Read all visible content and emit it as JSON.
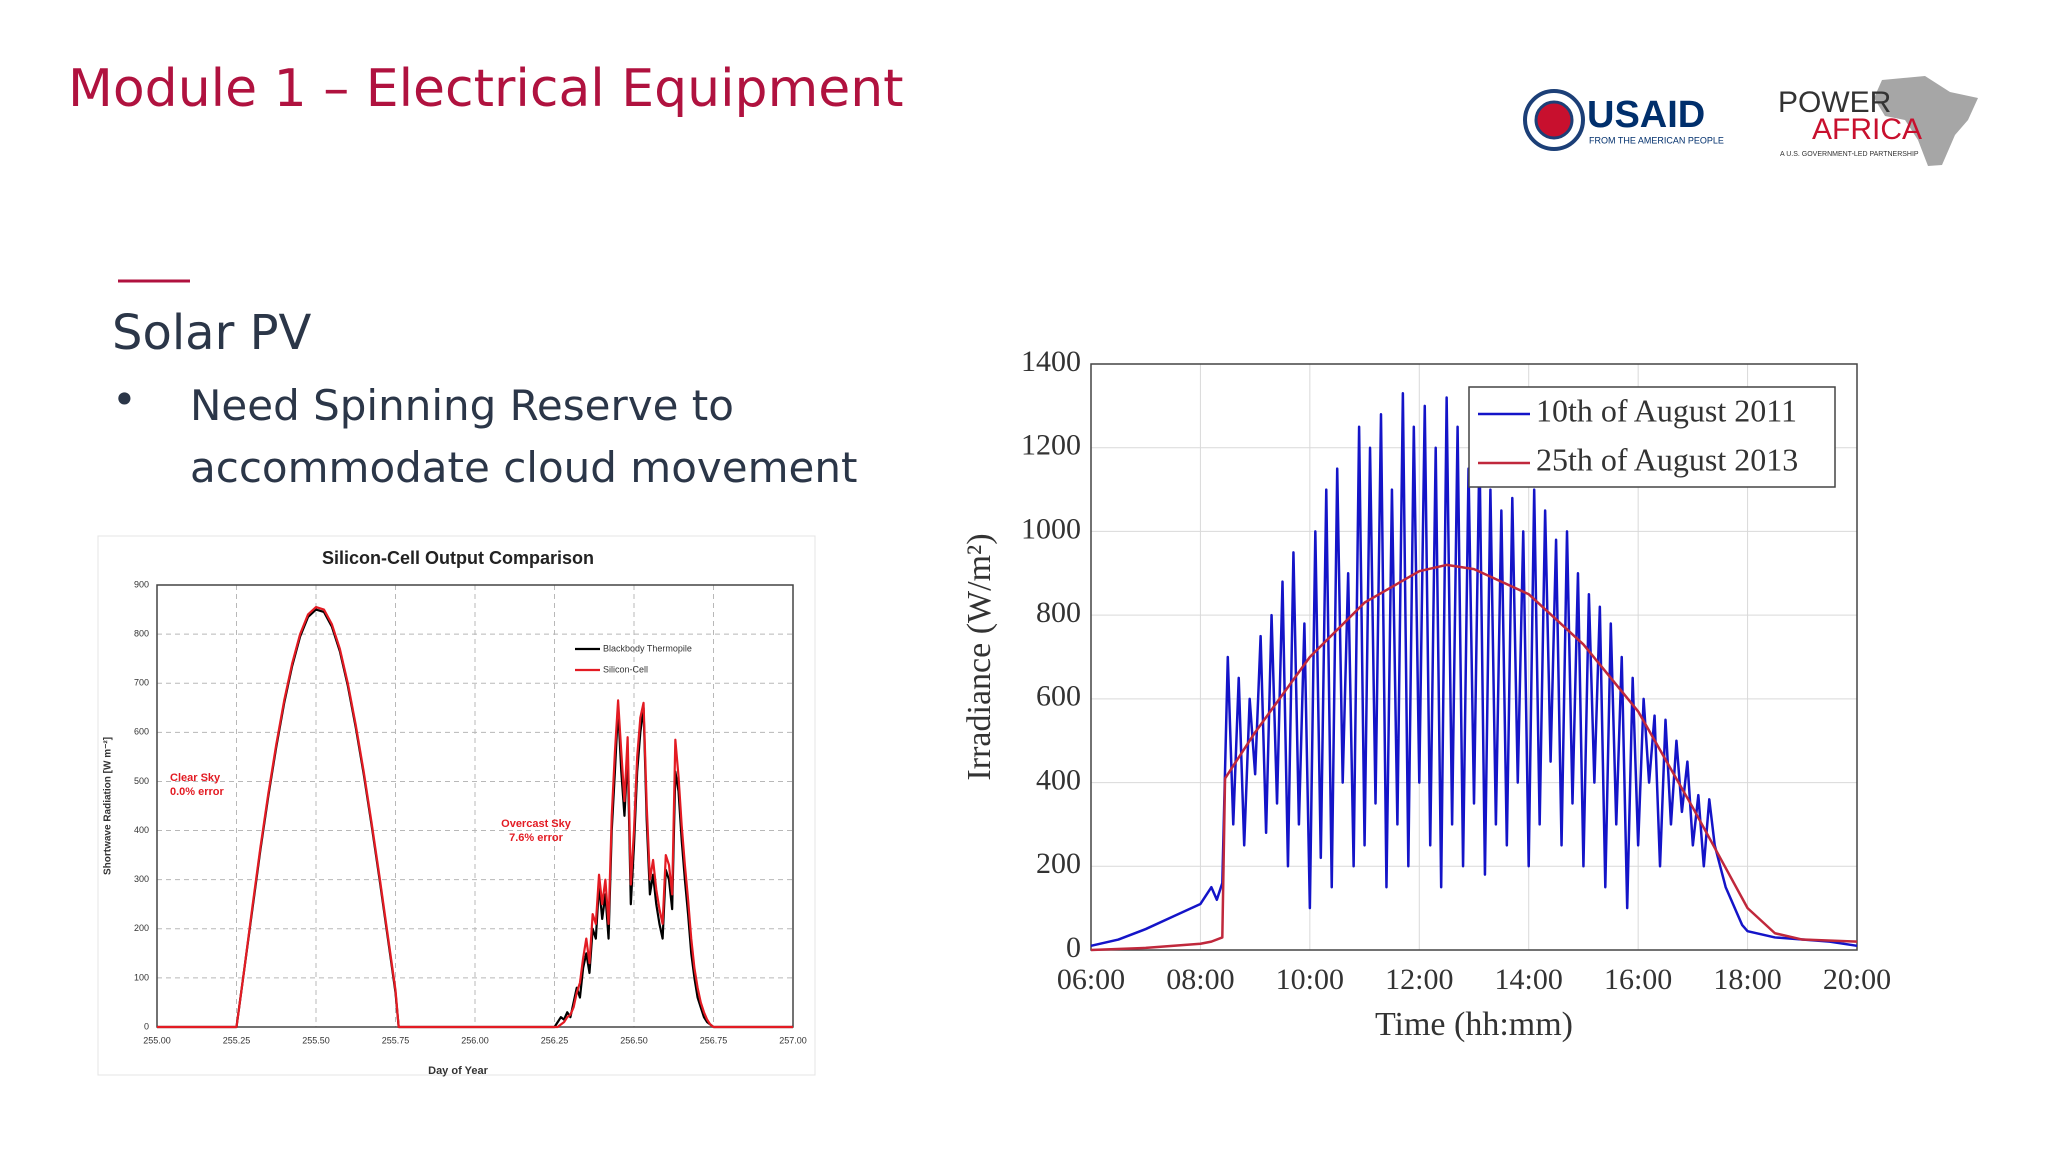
{
  "header": {
    "title": "Module 1 – Electrical Equipment"
  },
  "logos": {
    "usaid": "USAID",
    "usaid_tagline": "FROM THE AMERICAN PEOPLE",
    "power": "POWER",
    "africa": "AFRICA",
    "power_africa_tagline": "A U.S. GOVERNMENT-LED PARTNERSHIP"
  },
  "content": {
    "heading": "Solar PV",
    "bullets": [
      "Need Spinning Reserve to accommodate cloud movement"
    ]
  },
  "chart_data": [
    {
      "type": "line",
      "title": "Silicon-Cell Output Comparison",
      "x_label": "Day of Year",
      "y_label": "Shortwave Radiation [W m⁻²]",
      "x": [
        255.0,
        255.25,
        255.275,
        255.3,
        255.325,
        255.35,
        255.375,
        255.4,
        255.425,
        255.45,
        255.475,
        255.5,
        255.525,
        255.55,
        255.575,
        255.6,
        255.625,
        255.65,
        255.675,
        255.7,
        255.725,
        255.75,
        255.76,
        256.25,
        256.26,
        256.27,
        256.28,
        256.29,
        256.3,
        256.31,
        256.32,
        256.33,
        256.34,
        256.35,
        256.36,
        256.37,
        256.38,
        256.39,
        256.4,
        256.41,
        256.42,
        256.43,
        256.44,
        256.45,
        256.46,
        256.47,
        256.48,
        256.49,
        256.5,
        256.51,
        256.52,
        256.53,
        256.54,
        256.55,
        256.56,
        256.57,
        256.58,
        256.59,
        256.6,
        256.61,
        256.62,
        256.63,
        256.64,
        256.65,
        256.66,
        256.67,
        256.68,
        256.69,
        256.7,
        256.71,
        256.72,
        256.73,
        256.74,
        256.75,
        257.0
      ],
      "series": [
        {
          "name": "Blackbody Thermopile",
          "color": "#000000",
          "values": [
            0,
            0,
            120,
            240,
            360,
            470,
            570,
            660,
            735,
            795,
            835,
            850,
            845,
            815,
            765,
            695,
            610,
            515,
            410,
            300,
            185,
            70,
            0,
            0,
            10,
            20,
            15,
            30,
            20,
            50,
            80,
            60,
            120,
            150,
            110,
            200,
            180,
            290,
            220,
            270,
            180,
            400,
            520,
            650,
            520,
            430,
            560,
            250,
            370,
            520,
            600,
            650,
            420,
            270,
            310,
            250,
            210,
            180,
            320,
            300,
            240,
            520,
            480,
            380,
            300,
            230,
            150,
            100,
            60,
            40,
            20,
            10,
            5,
            0,
            0
          ]
        },
        {
          "name": "Silicon-Cell",
          "color": "#e31b23",
          "values": [
            0,
            0,
            120,
            245,
            365,
            475,
            575,
            665,
            740,
            800,
            840,
            855,
            850,
            820,
            770,
            700,
            615,
            520,
            415,
            305,
            190,
            75,
            0,
            0,
            0,
            5,
            10,
            20,
            25,
            40,
            70,
            90,
            140,
            180,
            130,
            230,
            210,
            310,
            250,
            300,
            210,
            430,
            560,
            665,
            560,
            460,
            590,
            290,
            400,
            550,
            630,
            660,
            450,
            300,
            340,
            280,
            240,
            210,
            350,
            330,
            270,
            585,
            510,
            410,
            330,
            260,
            180,
            120,
            80,
            50,
            30,
            15,
            5,
            0,
            0
          ]
        }
      ],
      "annotations": [
        [
          "Clear Sky",
          "0.0% error"
        ],
        [
          "Overcast Sky",
          "7.6% error"
        ]
      ],
      "xlim": [
        255,
        257
      ],
      "ylim": [
        0,
        900
      ],
      "xticks": [
        {
          "value": 255,
          "label": "255.00"
        },
        {
          "value": 255.25,
          "label": "255.25"
        },
        {
          "value": 255.5,
          "label": "255.50"
        },
        {
          "value": 255.75,
          "label": "255.75"
        },
        {
          "value": 256,
          "label": "256.00"
        },
        {
          "value": 256.25,
          "label": "256.25"
        },
        {
          "value": 256.5,
          "label": "256.50"
        },
        {
          "value": 256.75,
          "label": "256.75"
        },
        {
          "value": 257,
          "label": "257.00"
        }
      ],
      "yticks": [
        0,
        100,
        200,
        300,
        400,
        500,
        600,
        700,
        800,
        900
      ],
      "grid": true,
      "legend": "upper right"
    },
    {
      "type": "line",
      "x_label": "Time (hh:mm)",
      "y_label": "Irradiance (W/m²)",
      "series": [
        {
          "name": "10th of August 2011",
          "color": "#1414c8",
          "x": [
            6,
            6.5,
            7,
            7.5,
            8,
            8.2,
            8.3,
            8.4,
            8.5,
            8.6,
            8.7,
            8.8,
            8.9,
            9,
            9.1,
            9.2,
            9.3,
            9.4,
            9.5,
            9.6,
            9.7,
            9.8,
            9.9,
            10,
            10.1,
            10.2,
            10.3,
            10.4,
            10.5,
            10.6,
            10.7,
            10.8,
            10.9,
            11,
            11.1,
            11.2,
            11.3,
            11.4,
            11.5,
            11.6,
            11.7,
            11.8,
            11.9,
            12,
            12.1,
            12.2,
            12.3,
            12.4,
            12.5,
            12.6,
            12.7,
            12.8,
            12.9,
            13,
            13.1,
            13.2,
            13.3,
            13.4,
            13.5,
            13.6,
            13.7,
            13.8,
            13.9,
            14,
            14.1,
            14.2,
            14.3,
            14.4,
            14.5,
            14.6,
            14.7,
            14.8,
            14.9,
            15,
            15.1,
            15.2,
            15.3,
            15.4,
            15.5,
            15.6,
            15.7,
            15.8,
            15.9,
            16,
            16.1,
            16.2,
            16.3,
            16.4,
            16.5,
            16.6,
            16.7,
            16.8,
            16.9,
            17,
            17.1,
            17.2,
            17.3,
            17.4,
            17.5,
            17.6,
            17.7,
            17.8,
            17.9,
            18,
            18.5,
            19,
            19.5,
            20
          ],
          "values": [
            10,
            25,
            50,
            80,
            110,
            150,
            120,
            160,
            700,
            300,
            650,
            250,
            600,
            420,
            750,
            280,
            800,
            350,
            880,
            200,
            950,
            300,
            780,
            100,
            1000,
            220,
            1100,
            150,
            1150,
            400,
            900,
            200,
            1250,
            250,
            1200,
            350,
            1280,
            150,
            1100,
            300,
            1330,
            200,
            1250,
            400,
            1300,
            250,
            1200,
            150,
            1320,
            300,
            1250,
            200,
            1150,
            350,
            1200,
            180,
            1100,
            300,
            1050,
            250,
            1080,
            400,
            1000,
            200,
            1100,
            300,
            1050,
            450,
            980,
            250,
            1000,
            350,
            900,
            200,
            850,
            400,
            820,
            150,
            780,
            300,
            700,
            100,
            650,
            250,
            600,
            400,
            560,
            200,
            550,
            300,
            500,
            330,
            450,
            250,
            370,
            200,
            360,
            250,
            200,
            150,
            120,
            90,
            60,
            45,
            30,
            25,
            20,
            10
          ]
        },
        {
          "name": "25th of August 2013",
          "color": "#c0283c",
          "x": [
            6,
            7,
            8,
            8.2,
            8.4,
            8.45,
            9,
            10,
            11,
            12,
            12.5,
            13,
            14,
            15,
            16,
            17,
            18,
            18.5,
            19,
            20
          ],
          "values": [
            0,
            5,
            15,
            20,
            30,
            410,
            520,
            700,
            830,
            905,
            920,
            910,
            850,
            730,
            570,
            340,
            100,
            40,
            25,
            20
          ]
        }
      ],
      "xlim": [
        6,
        20
      ],
      "ylim": [
        0,
        1400
      ],
      "xticks": [
        {
          "value": 6,
          "label": "06:00"
        },
        {
          "value": 8,
          "label": "08:00"
        },
        {
          "value": 10,
          "label": "10:00"
        },
        {
          "value": 12,
          "label": "12:00"
        },
        {
          "value": 14,
          "label": "14:00"
        },
        {
          "value": 16,
          "label": "16:00"
        },
        {
          "value": 18,
          "label": "18:00"
        },
        {
          "value": 20,
          "label": "20:00"
        }
      ],
      "yticks": [
        0,
        200,
        400,
        600,
        800,
        1000,
        1200,
        1400
      ],
      "grid": true,
      "legend": "upper right"
    }
  ]
}
